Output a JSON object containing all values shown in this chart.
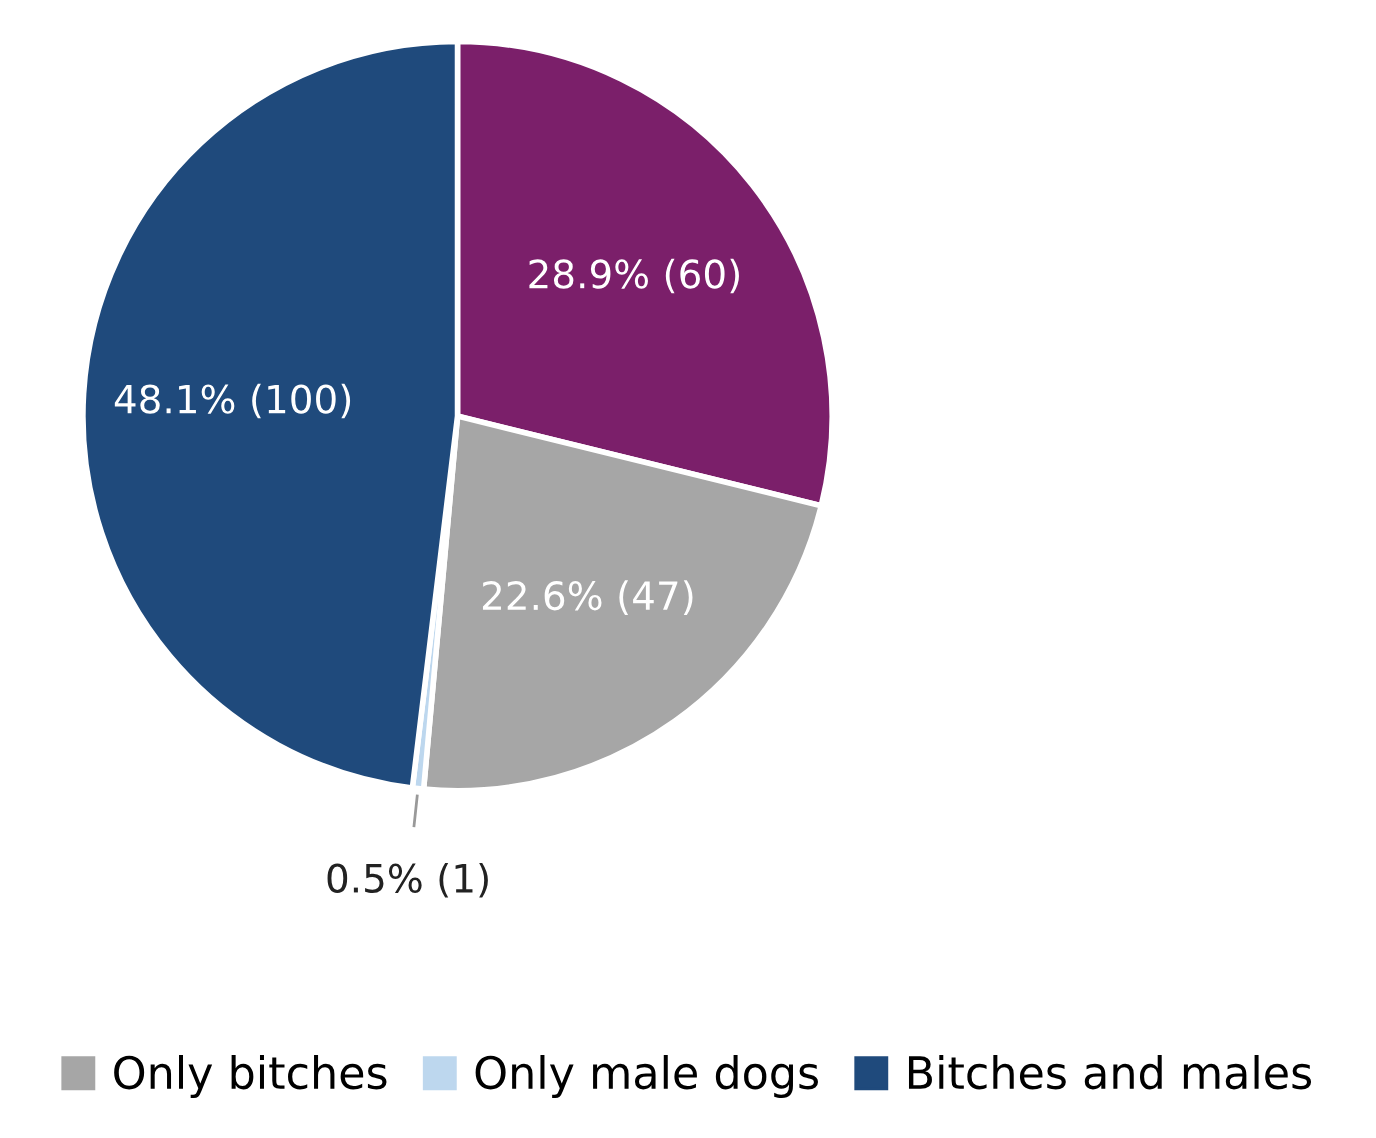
{
  "chart_data": {
    "type": "pie",
    "categories": [
      null,
      "Only bitches",
      "Only male dogs",
      "Bitches and males"
    ],
    "values": [
      60,
      47,
      1,
      100
    ],
    "colors": [
      "#7b1f6a",
      "#a6a6a6",
      "#bdd7ee",
      "#1f4a7c"
    ],
    "value_labels": [
      "28.9% (60)",
      "22.6% (47)",
      "0.5% (1)",
      "48.1% (100)"
    ],
    "legend": "bottom"
  }
}
